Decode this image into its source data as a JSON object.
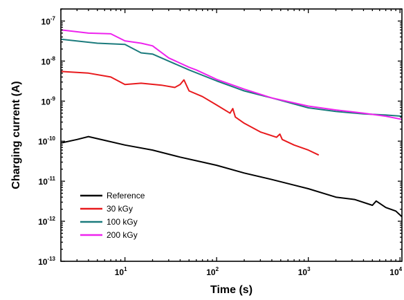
{
  "chart_data": {
    "type": "line",
    "xlabel": "Time (s)",
    "ylabel": "Charging current (A)",
    "x_scale": "log",
    "y_scale": "log",
    "xlim": [
      2,
      10500
    ],
    "ylim": [
      1e-13,
      2e-07
    ],
    "x_ticks": [
      {
        "base": "10",
        "exp": "1",
        "value": 10
      },
      {
        "base": "10",
        "exp": "2",
        "value": 100
      },
      {
        "base": "10",
        "exp": "3",
        "value": 1000
      },
      {
        "base": "10",
        "exp": "4",
        "value": 10000
      }
    ],
    "y_ticks": [
      {
        "base": "10",
        "exp": "-13",
        "value": 1e-13
      },
      {
        "base": "10",
        "exp": "-12",
        "value": 1e-12
      },
      {
        "base": "10",
        "exp": "-11",
        "value": 1e-11
      },
      {
        "base": "10",
        "exp": "-10",
        "value": 1e-10
      },
      {
        "base": "10",
        "exp": "-9",
        "value": 1e-09
      },
      {
        "base": "10",
        "exp": "-8",
        "value": 1e-08
      },
      {
        "base": "10",
        "exp": "-7",
        "value": 1e-07
      }
    ],
    "grid": false,
    "legend_position": "bottom-left",
    "series": [
      {
        "name": "Reference",
        "color": "#000000",
        "points": [
          [
            2,
            9e-11
          ],
          [
            3,
            1.1e-10
          ],
          [
            4,
            1.3e-10
          ],
          [
            6,
            1.05e-10
          ],
          [
            10,
            8e-11
          ],
          [
            20,
            6e-11
          ],
          [
            40,
            4e-11
          ],
          [
            70,
            3e-11
          ],
          [
            100,
            2.5e-11
          ],
          [
            200,
            1.6e-11
          ],
          [
            400,
            1.1e-11
          ],
          [
            700,
            8e-12
          ],
          [
            1000,
            6.5e-12
          ],
          [
            2000,
            4e-12
          ],
          [
            3200,
            3.5e-12
          ],
          [
            5000,
            2.5e-12
          ],
          [
            5500,
            3.2e-12
          ],
          [
            7000,
            2.2e-12
          ],
          [
            9000,
            1.8e-12
          ],
          [
            10500,
            1.3e-12
          ]
        ]
      },
      {
        "name": "30 kGy",
        "color": "#e8191c",
        "points": [
          [
            2,
            5.5e-09
          ],
          [
            4,
            5e-09
          ],
          [
            7,
            4e-09
          ],
          [
            10,
            2.6e-09
          ],
          [
            15,
            2.8e-09
          ],
          [
            25,
            2.5e-09
          ],
          [
            35,
            2.2e-09
          ],
          [
            40,
            2.6e-09
          ],
          [
            44,
            3.4e-09
          ],
          [
            50,
            1.8e-09
          ],
          [
            70,
            1.3e-09
          ],
          [
            100,
            8e-10
          ],
          [
            140,
            5e-10
          ],
          [
            150,
            6.5e-10
          ],
          [
            160,
            4e-10
          ],
          [
            200,
            2.8e-10
          ],
          [
            300,
            1.7e-10
          ],
          [
            450,
            1.25e-10
          ],
          [
            490,
            1.5e-10
          ],
          [
            520,
            1.1e-10
          ],
          [
            700,
            8e-11
          ],
          [
            1000,
            6e-11
          ],
          [
            1300,
            4.5e-11
          ]
        ]
      },
      {
        "name": "100 kGy",
        "color": "#1a7a7c",
        "points": [
          [
            2,
            3.5e-08
          ],
          [
            5,
            2.8e-08
          ],
          [
            10,
            2.6e-08
          ],
          [
            15,
            1.6e-08
          ],
          [
            20,
            1.5e-08
          ],
          [
            30,
            1e-08
          ],
          [
            50,
            6e-09
          ],
          [
            100,
            3.2e-09
          ],
          [
            200,
            1.8e-09
          ],
          [
            400,
            1.2e-09
          ],
          [
            700,
            8.5e-10
          ],
          [
            1000,
            6.8e-10
          ],
          [
            2000,
            5.5e-10
          ],
          [
            4000,
            4.8e-10
          ],
          [
            7000,
            4.5e-10
          ],
          [
            10500,
            4.2e-10
          ]
        ]
      },
      {
        "name": "200 kGy",
        "color": "#ee22ee",
        "points": [
          [
            2,
            6e-08
          ],
          [
            4,
            5e-08
          ],
          [
            7,
            4.8e-08
          ],
          [
            10,
            3.2e-08
          ],
          [
            15,
            2.8e-08
          ],
          [
            20,
            2.4e-08
          ],
          [
            30,
            1.2e-08
          ],
          [
            50,
            7e-09
          ],
          [
            60,
            6e-09
          ],
          [
            100,
            3.5e-09
          ],
          [
            200,
            2e-09
          ],
          [
            400,
            1.2e-09
          ],
          [
            700,
            9e-10
          ],
          [
            1000,
            7.5e-10
          ],
          [
            2000,
            6e-10
          ],
          [
            4000,
            5e-10
          ],
          [
            7000,
            4.2e-10
          ],
          [
            10500,
            3.5e-10
          ]
        ]
      }
    ]
  }
}
